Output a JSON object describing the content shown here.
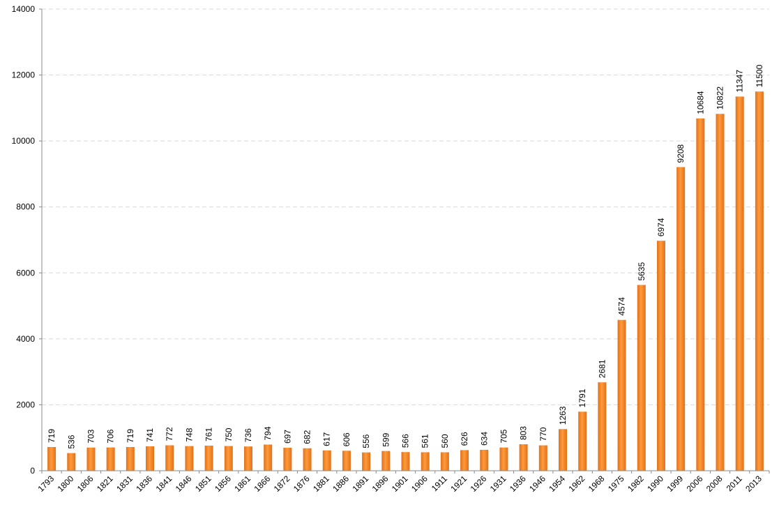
{
  "chart_data": {
    "type": "bar",
    "title": "",
    "xlabel": "",
    "ylabel": "",
    "ylim": [
      0,
      14000
    ],
    "yticks": [
      0,
      2000,
      4000,
      6000,
      8000,
      10000,
      12000,
      14000
    ],
    "grid": true,
    "legend": "none",
    "bar_color": "#f28a24",
    "bar_color_dark": "#d9691a",
    "categories": [
      "1793",
      "1800",
      "1806",
      "1821",
      "1831",
      "1836",
      "1841",
      "1846",
      "1851",
      "1856",
      "1861",
      "1866",
      "1872",
      "1876",
      "1881",
      "1886",
      "1891",
      "1896",
      "1901",
      "1906",
      "1911",
      "1921",
      "1926",
      "1931",
      "1936",
      "1946",
      "1954",
      "1962",
      "1968",
      "1975",
      "1982",
      "1990",
      "1999",
      "2006",
      "2008",
      "2011",
      "2013"
    ],
    "values": [
      719,
      536,
      703,
      706,
      719,
      741,
      772,
      748,
      761,
      750,
      736,
      794,
      697,
      682,
      617,
      606,
      556,
      599,
      566,
      561,
      560,
      626,
      634,
      705,
      803,
      770,
      1263,
      1791,
      2681,
      4574,
      5635,
      6974,
      9208,
      10684,
      10822,
      11347,
      11500
    ]
  }
}
